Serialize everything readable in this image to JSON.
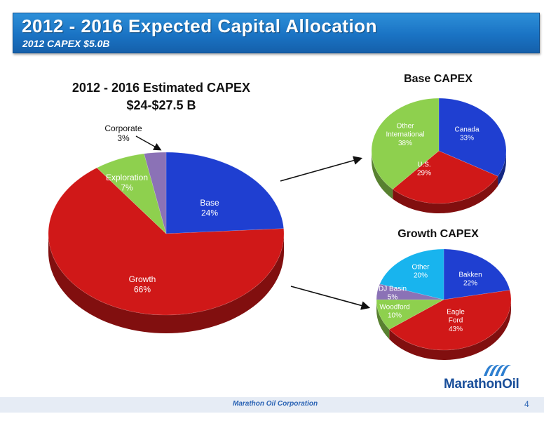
{
  "header": {
    "title": "2012 - 2016 Expected Capital Allocation",
    "subtitle": "2012 CAPEX $5.0B"
  },
  "footer": {
    "company": "Marathon Oil Corporation",
    "page": "4"
  },
  "logo": {
    "text": "MarathonOil",
    "icon": "marathon-waves-icon"
  },
  "chart_data": [
    {
      "type": "pie",
      "title": "2012 - 2016 Estimated CAPEX",
      "subtitle": "$24-$27.5 B",
      "categories": [
        "Base",
        "Growth",
        "Exploration",
        "Corporate"
      ],
      "values": [
        24,
        66,
        7,
        3
      ],
      "labels": [
        "24%",
        "66%",
        "7%",
        "3%"
      ],
      "colors": [
        "#1f3fd1",
        "#d01818",
        "#8ed04e",
        "#8b72b6"
      ],
      "annotation": "Corporate"
    },
    {
      "type": "pie",
      "title": "Base CAPEX",
      "categories": [
        "Canada",
        "U.S.",
        "Other International"
      ],
      "values": [
        33,
        29,
        38
      ],
      "labels": [
        "33%",
        "29%",
        "38%"
      ],
      "colors": [
        "#1f3fd1",
        "#d01818",
        "#8ed04e"
      ]
    },
    {
      "type": "pie",
      "title": "Growth CAPEX",
      "categories": [
        "Bakken",
        "Eagle Ford",
        "Woodford",
        "DJ Basin",
        "Other"
      ],
      "values": [
        22,
        43,
        10,
        5,
        20
      ],
      "labels": [
        "22%",
        "43%",
        "10%",
        "5%",
        "20%"
      ],
      "colors": [
        "#1f3fd1",
        "#d01818",
        "#8ed04e",
        "#8b72b6",
        "#18b4ee"
      ]
    }
  ]
}
